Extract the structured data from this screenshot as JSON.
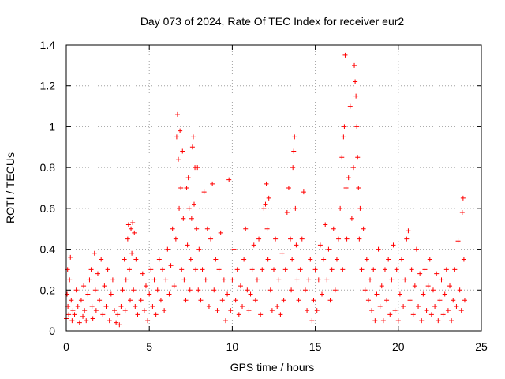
{
  "chart_data": {
    "type": "scatter",
    "title": "Day 073 of 2024, Rate Of TEC Index for receiver eur2",
    "xlabel": "GPS time / hours",
    "ylabel": "ROTI / TECUs",
    "xlim": [
      0,
      25
    ],
    "ylim": [
      0,
      1.4
    ],
    "x_ticks": [
      "0",
      "5",
      "10",
      "15",
      "20",
      "25"
    ],
    "y_ticks": [
      "0",
      "0.2",
      "0.4",
      "0.6",
      "0.8",
      "1",
      "1.2",
      "1.4"
    ],
    "grid": true,
    "marker": "+",
    "color": "#ff0000",
    "series": [
      {
        "points": [
          [
            0.0,
            0.06
          ],
          [
            0.05,
            0.18
          ],
          [
            0.08,
            0.3
          ],
          [
            0.1,
            0.12
          ],
          [
            0.15,
            0.08
          ],
          [
            0.2,
            0.25
          ],
          [
            0.25,
            0.36
          ],
          [
            0.3,
            0.15
          ],
          [
            0.35,
            0.05
          ],
          [
            0.4,
            0.1
          ],
          [
            0.5,
            0.08
          ],
          [
            0.6,
            0.2
          ],
          [
            0.7,
            0.12
          ],
          [
            0.8,
            0.04
          ],
          [
            0.9,
            0.15
          ],
          [
            1.0,
            0.07
          ],
          [
            1.05,
            0.22
          ],
          [
            1.1,
            0.1
          ],
          [
            1.2,
            0.05
          ],
          [
            1.3,
            0.18
          ],
          [
            1.4,
            0.25
          ],
          [
            1.5,
            0.3
          ],
          [
            1.55,
            0.12
          ],
          [
            1.6,
            0.06
          ],
          [
            1.7,
            0.38
          ],
          [
            1.75,
            0.2
          ],
          [
            1.8,
            0.1
          ],
          [
            1.9,
            0.28
          ],
          [
            2.0,
            0.15
          ],
          [
            2.1,
            0.35
          ],
          [
            2.2,
            0.08
          ],
          [
            2.3,
            0.22
          ],
          [
            2.4,
            0.12
          ],
          [
            2.5,
            0.3
          ],
          [
            2.6,
            0.05
          ],
          [
            2.7,
            0.18
          ],
          [
            2.8,
            0.25
          ],
          [
            2.9,
            0.1
          ],
          [
            3.0,
            0.04
          ],
          [
            3.1,
            0.08
          ],
          [
            3.2,
            0.03
          ],
          [
            3.3,
            0.12
          ],
          [
            3.4,
            0.2
          ],
          [
            3.5,
            0.35
          ],
          [
            3.55,
            0.1
          ],
          [
            3.6,
            0.25
          ],
          [
            3.7,
            0.45
          ],
          [
            3.75,
            0.52
          ],
          [
            3.8,
            0.3
          ],
          [
            3.85,
            0.15
          ],
          [
            3.9,
            0.5
          ],
          [
            3.95,
            0.38
          ],
          [
            4.0,
            0.53
          ],
          [
            4.05,
            0.2
          ],
          [
            4.1,
            0.48
          ],
          [
            4.15,
            0.12
          ],
          [
            4.2,
            0.35
          ],
          [
            4.3,
            0.08
          ],
          [
            4.5,
            0.15
          ],
          [
            4.6,
            0.28
          ],
          [
            4.7,
            0.1
          ],
          [
            4.8,
            0.22
          ],
          [
            4.9,
            0.05
          ],
          [
            5.0,
            0.18
          ],
          [
            5.1,
            0.3
          ],
          [
            5.2,
            0.12
          ],
          [
            5.3,
            0.25
          ],
          [
            5.4,
            0.08
          ],
          [
            5.5,
            0.2
          ],
          [
            5.6,
            0.35
          ],
          [
            5.7,
            0.15
          ],
          [
            5.8,
            0.3
          ],
          [
            5.9,
            0.1
          ],
          [
            6.0,
            0.25
          ],
          [
            6.1,
            0.4
          ],
          [
            6.2,
            0.18
          ],
          [
            6.3,
            0.32
          ],
          [
            6.4,
            0.5
          ],
          [
            6.5,
            0.22
          ],
          [
            6.6,
            0.45
          ],
          [
            6.65,
            0.95
          ],
          [
            6.7,
            1.06
          ],
          [
            6.75,
            0.84
          ],
          [
            6.8,
            0.6
          ],
          [
            6.85,
            0.98
          ],
          [
            6.9,
            0.7
          ],
          [
            6.95,
            0.3
          ],
          [
            7.0,
            0.88
          ],
          [
            7.05,
            0.55
          ],
          [
            7.1,
            0.25
          ],
          [
            7.2,
            0.15
          ],
          [
            7.25,
            0.7
          ],
          [
            7.3,
            0.42
          ],
          [
            7.35,
            0.75
          ],
          [
            7.4,
            0.6
          ],
          [
            7.45,
            0.2
          ],
          [
            7.5,
            0.35
          ],
          [
            7.55,
            0.55
          ],
          [
            7.6,
            0.9
          ],
          [
            7.65,
            0.95
          ],
          [
            7.7,
            0.62
          ],
          [
            7.75,
            0.8
          ],
          [
            7.8,
            0.3
          ],
          [
            7.85,
            0.5
          ],
          [
            7.9,
            0.8
          ],
          [
            7.95,
            0.2
          ],
          [
            8.0,
            0.4
          ],
          [
            8.1,
            0.15
          ],
          [
            8.2,
            0.3
          ],
          [
            8.3,
            0.68
          ],
          [
            8.4,
            0.25
          ],
          [
            8.5,
            0.5
          ],
          [
            8.6,
            0.12
          ],
          [
            8.7,
            0.45
          ],
          [
            8.8,
            0.72
          ],
          [
            8.9,
            0.2
          ],
          [
            9.0,
            0.35
          ],
          [
            9.1,
            0.1
          ],
          [
            9.2,
            0.3
          ],
          [
            9.3,
            0.48
          ],
          [
            9.4,
            0.15
          ],
          [
            9.5,
            0.25
          ],
          [
            9.6,
            0.05
          ],
          [
            9.7,
            0.18
          ],
          [
            9.8,
            0.74
          ],
          [
            9.9,
            0.1
          ],
          [
            10.0,
            0.25
          ],
          [
            10.1,
            0.4
          ],
          [
            10.2,
            0.15
          ],
          [
            10.3,
            0.3
          ],
          [
            10.4,
            0.08
          ],
          [
            10.5,
            0.22
          ],
          [
            10.6,
            0.12
          ],
          [
            10.7,
            0.35
          ],
          [
            10.8,
            0.5
          ],
          [
            10.9,
            0.2
          ],
          [
            11.0,
            0.1
          ],
          [
            11.1,
            0.18
          ],
          [
            11.2,
            0.3
          ],
          [
            11.3,
            0.42
          ],
          [
            11.4,
            0.15
          ],
          [
            11.5,
            0.25
          ],
          [
            11.6,
            0.45
          ],
          [
            11.7,
            0.08
          ],
          [
            11.8,
            0.3
          ],
          [
            11.9,
            0.6
          ],
          [
            12.0,
            0.62
          ],
          [
            12.05,
            0.72
          ],
          [
            12.1,
            0.5
          ],
          [
            12.15,
            0.35
          ],
          [
            12.2,
            0.65
          ],
          [
            12.3,
            0.2
          ],
          [
            12.4,
            0.1
          ],
          [
            12.5,
            0.3
          ],
          [
            12.6,
            0.45
          ],
          [
            12.7,
            0.12
          ],
          [
            12.8,
            0.25
          ],
          [
            12.9,
            0.08
          ],
          [
            13.0,
            0.38
          ],
          [
            13.1,
            0.15
          ],
          [
            13.2,
            0.3
          ],
          [
            13.3,
            0.58
          ],
          [
            13.4,
            0.7
          ],
          [
            13.5,
            0.45
          ],
          [
            13.55,
            0.2
          ],
          [
            13.6,
            0.35
          ],
          [
            13.65,
            0.8
          ],
          [
            13.7,
            0.88
          ],
          [
            13.75,
            0.95
          ],
          [
            13.8,
            0.6
          ],
          [
            13.85,
            0.42
          ],
          [
            13.9,
            0.25
          ],
          [
            14.0,
            0.15
          ],
          [
            14.1,
            0.3
          ],
          [
            14.2,
            0.45
          ],
          [
            14.3,
            0.68
          ],
          [
            14.4,
            0.2
          ],
          [
            14.5,
            0.1
          ],
          [
            14.6,
            0.25
          ],
          [
            14.7,
            0.35
          ],
          [
            14.8,
            0.05
          ],
          [
            14.9,
            0.15
          ],
          [
            15.0,
            0.3
          ],
          [
            15.1,
            0.1
          ],
          [
            15.2,
            0.25
          ],
          [
            15.3,
            0.42
          ],
          [
            15.4,
            0.18
          ],
          [
            15.5,
            0.35
          ],
          [
            15.6,
            0.52
          ],
          [
            15.7,
            0.25
          ],
          [
            15.8,
            0.4
          ],
          [
            15.9,
            0.15
          ],
          [
            16.0,
            0.3
          ],
          [
            16.1,
            0.5
          ],
          [
            16.2,
            0.2
          ],
          [
            16.3,
            0.35
          ],
          [
            16.4,
            0.45
          ],
          [
            16.5,
            0.6
          ],
          [
            16.6,
            0.85
          ],
          [
            16.65,
            0.3
          ],
          [
            16.7,
            0.95
          ],
          [
            16.75,
            1.0
          ],
          [
            16.8,
            1.35
          ],
          [
            16.85,
            0.7
          ],
          [
            16.9,
            0.45
          ],
          [
            17.0,
            0.75
          ],
          [
            17.1,
            1.1
          ],
          [
            17.2,
            0.55
          ],
          [
            17.3,
            0.8
          ],
          [
            17.35,
            1.3
          ],
          [
            17.4,
            1.22
          ],
          [
            17.45,
            1.15
          ],
          [
            17.5,
            1.0
          ],
          [
            17.55,
            0.85
          ],
          [
            17.6,
            0.7
          ],
          [
            17.65,
            0.45
          ],
          [
            17.7,
            0.6
          ],
          [
            17.8,
            0.3
          ],
          [
            17.9,
            0.5
          ],
          [
            18.0,
            0.2
          ],
          [
            18.1,
            0.35
          ],
          [
            18.2,
            0.15
          ],
          [
            18.3,
            0.25
          ],
          [
            18.4,
            0.1
          ],
          [
            18.5,
            0.3
          ],
          [
            18.6,
            0.05
          ],
          [
            18.7,
            0.18
          ],
          [
            18.8,
            0.4
          ],
          [
            18.9,
            0.12
          ],
          [
            19.0,
            0.22
          ],
          [
            19.1,
            0.05
          ],
          [
            19.2,
            0.3
          ],
          [
            19.3,
            0.15
          ],
          [
            19.4,
            0.35
          ],
          [
            19.5,
            0.08
          ],
          [
            19.6,
            0.25
          ],
          [
            19.7,
            0.42
          ],
          [
            19.8,
            0.1
          ],
          [
            19.9,
            0.3
          ],
          [
            20.0,
            0.05
          ],
          [
            20.1,
            0.18
          ],
          [
            20.2,
            0.35
          ],
          [
            20.3,
            0.12
          ],
          [
            20.4,
            0.25
          ],
          [
            20.5,
            0.45
          ],
          [
            20.6,
            0.49
          ],
          [
            20.7,
            0.15
          ],
          [
            20.8,
            0.3
          ],
          [
            20.9,
            0.08
          ],
          [
            21.0,
            0.22
          ],
          [
            21.1,
            0.4
          ],
          [
            21.2,
            0.12
          ],
          [
            21.3,
            0.28
          ],
          [
            21.4,
            0.05
          ],
          [
            21.5,
            0.18
          ],
          [
            21.6,
            0.3
          ],
          [
            21.7,
            0.1
          ],
          [
            21.8,
            0.22
          ],
          [
            21.9,
            0.35
          ],
          [
            22.0,
            0.08
          ],
          [
            22.1,
            0.2
          ],
          [
            22.2,
            0.12
          ],
          [
            22.3,
            0.28
          ],
          [
            22.4,
            0.05
          ],
          [
            22.5,
            0.15
          ],
          [
            22.6,
            0.25
          ],
          [
            22.7,
            0.08
          ],
          [
            22.8,
            0.18
          ],
          [
            22.9,
            0.3
          ],
          [
            23.0,
            0.1
          ],
          [
            23.1,
            0.22
          ],
          [
            23.2,
            0.05
          ],
          [
            23.3,
            0.15
          ],
          [
            23.4,
            0.3
          ],
          [
            23.5,
            0.12
          ],
          [
            23.6,
            0.44
          ],
          [
            23.7,
            0.2
          ],
          [
            23.8,
            0.1
          ],
          [
            23.85,
            0.58
          ],
          [
            23.9,
            0.65
          ],
          [
            23.95,
            0.35
          ],
          [
            24.0,
            0.15
          ]
        ]
      }
    ]
  }
}
